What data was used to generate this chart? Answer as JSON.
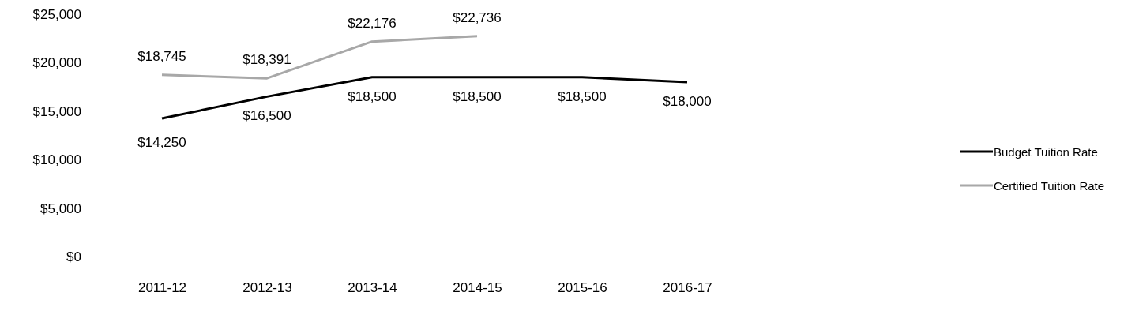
{
  "chart_data": {
    "type": "line",
    "categories": [
      "2011-12",
      "2012-13",
      "2013-14",
      "2014-15",
      "2015-16",
      "2016-17"
    ],
    "series": [
      {
        "name": "Budget Tuition Rate",
        "color": "#000000",
        "values": [
          14250,
          16500,
          18500,
          18500,
          18500,
          18000
        ],
        "value_labels": [
          "$14,250",
          "$16,500",
          "$18,500",
          "$18,500",
          "$18,500",
          "$18,000"
        ]
      },
      {
        "name": "Certified Tuition Rate",
        "color": "#a8a8a8",
        "values": [
          18745,
          18391,
          22176,
          22736,
          null,
          null
        ],
        "value_labels": [
          "$18,745",
          "$18,391",
          "$22,176",
          "$22,736",
          null,
          null
        ]
      }
    ],
    "ylim": [
      0,
      25000
    ],
    "yticks": [
      {
        "value": 0,
        "label": "$0"
      },
      {
        "value": 5000,
        "label": "$5,000"
      },
      {
        "value": 10000,
        "label": "$10,000"
      },
      {
        "value": 15000,
        "label": "$15,000"
      },
      {
        "value": 20000,
        "label": "$20,000"
      },
      {
        "value": 25000,
        "label": "$25,000"
      }
    ],
    "grid": false,
    "legend": "right",
    "marker": "none",
    "line_style": "solid"
  }
}
